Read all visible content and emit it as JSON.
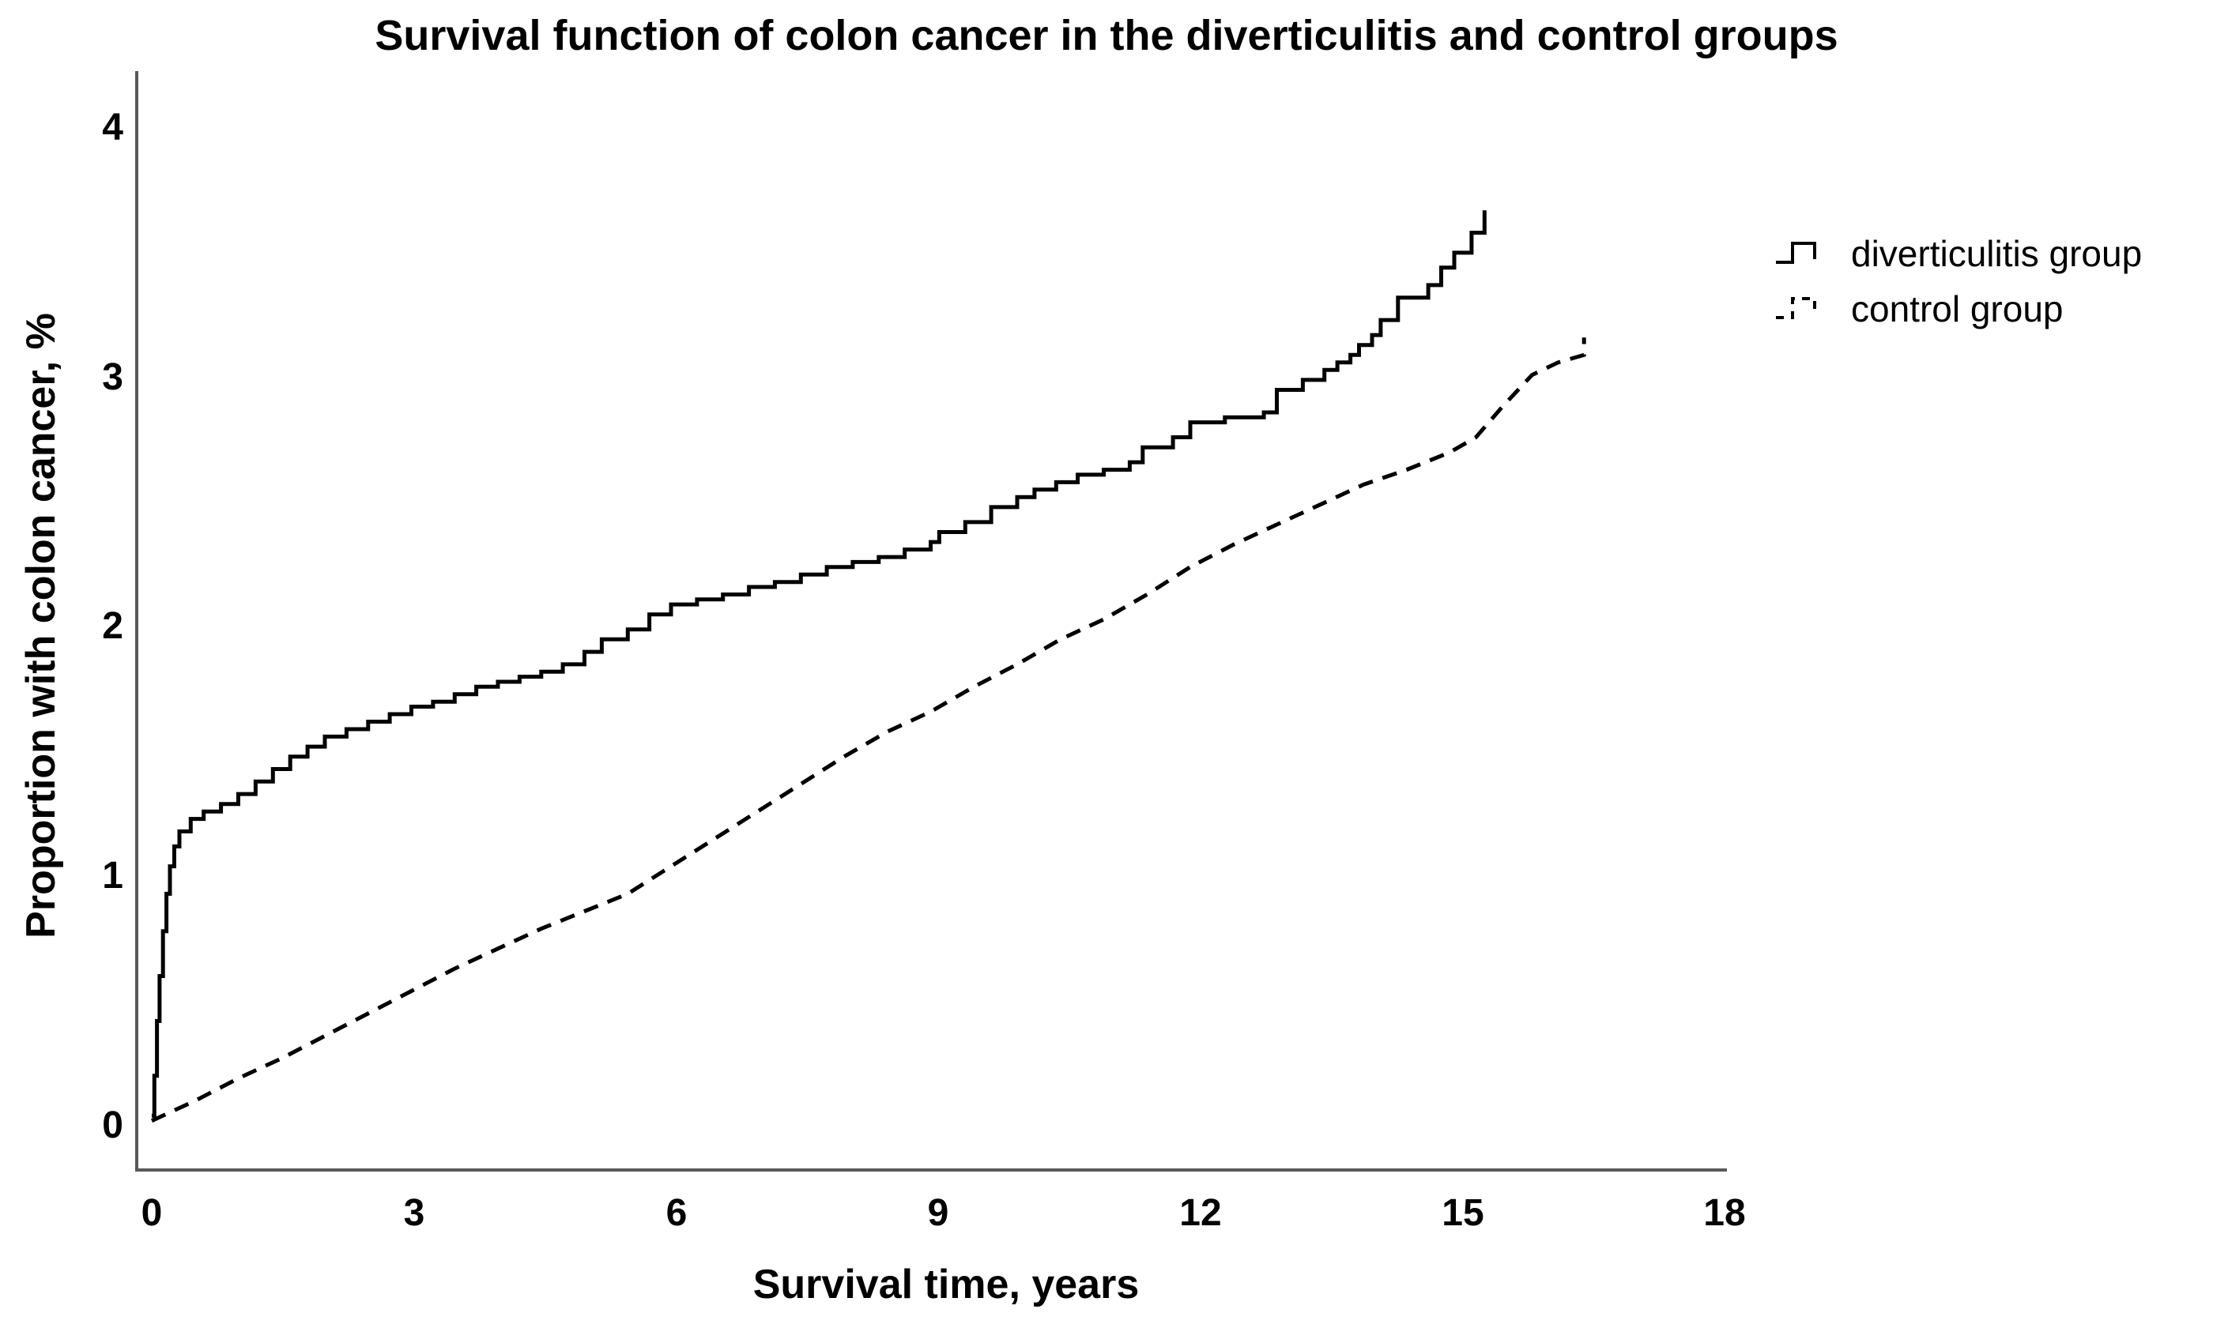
{
  "title": "Survival function of colon cancer in the diverticulitis and control groups",
  "axes": {
    "x_label": "Survival time, years",
    "y_label": "Proportion with colon cancer, %",
    "x_ticks": [
      "0",
      "3",
      "6",
      "9",
      "12",
      "15",
      "18"
    ],
    "y_ticks": [
      "4",
      "3",
      "2",
      "1",
      "0"
    ]
  },
  "legend": {
    "items": [
      {
        "label": "diverticulitis group",
        "style": "solid"
      },
      {
        "label": "control group",
        "style": "dashed"
      }
    ]
  },
  "colors": {
    "curve": "#000000",
    "axis_line": "#595959",
    "background": "#ffffff"
  },
  "chart_data": {
    "type": "line",
    "title": "Survival function of colon cancer in the diverticulitis and control groups",
    "xlabel": "Survival time, years",
    "ylabel": "Proportion with colon cancer, %",
    "x_range": [
      0,
      18
    ],
    "y_range": [
      0,
      4
    ],
    "x_tick_values": [
      0,
      3,
      6,
      9,
      12,
      15,
      18
    ],
    "y_tick_values": [
      0,
      1,
      2,
      3,
      4
    ],
    "grid": false,
    "legend_position": "right",
    "units": {
      "x": "years",
      "y": "percent"
    },
    "series": [
      {
        "name": "diverticulitis group",
        "id": "diverticulitis",
        "line_style": "solid",
        "interpolation": "step-after",
        "color": "#000000",
        "points": [
          [
            0,
            0.04
          ],
          [
            0.03,
            0.2
          ],
          [
            0.06,
            0.42
          ],
          [
            0.09,
            0.6
          ],
          [
            0.13,
            0.78
          ],
          [
            0.17,
            0.93
          ],
          [
            0.21,
            1.04
          ],
          [
            0.26,
            1.12
          ],
          [
            0.32,
            1.18
          ],
          [
            0.45,
            1.23
          ],
          [
            0.6,
            1.26
          ],
          [
            0.8,
            1.29
          ],
          [
            1.0,
            1.33
          ],
          [
            1.2,
            1.38
          ],
          [
            1.4,
            1.43
          ],
          [
            1.6,
            1.48
          ],
          [
            1.8,
            1.52
          ],
          [
            2.0,
            1.56
          ],
          [
            2.25,
            1.59
          ],
          [
            2.5,
            1.62
          ],
          [
            2.75,
            1.65
          ],
          [
            3.0,
            1.68
          ],
          [
            3.25,
            1.7
          ],
          [
            3.5,
            1.73
          ],
          [
            3.75,
            1.76
          ],
          [
            4.0,
            1.78
          ],
          [
            4.25,
            1.8
          ],
          [
            4.5,
            1.82
          ],
          [
            4.75,
            1.85
          ],
          [
            5.0,
            1.9
          ],
          [
            5.2,
            1.95
          ],
          [
            5.5,
            1.99
          ],
          [
            5.75,
            2.05
          ],
          [
            6.0,
            2.09
          ],
          [
            6.3,
            2.11
          ],
          [
            6.6,
            2.13
          ],
          [
            6.9,
            2.16
          ],
          [
            7.2,
            2.18
          ],
          [
            7.5,
            2.21
          ],
          [
            7.8,
            2.24
          ],
          [
            8.1,
            2.26
          ],
          [
            8.4,
            2.28
          ],
          [
            8.7,
            2.31
          ],
          [
            9.0,
            2.34
          ],
          [
            9.1,
            2.38
          ],
          [
            9.4,
            2.42
          ],
          [
            9.7,
            2.48
          ],
          [
            10.0,
            2.52
          ],
          [
            10.2,
            2.55
          ],
          [
            10.45,
            2.58
          ],
          [
            10.7,
            2.61
          ],
          [
            11.0,
            2.63
          ],
          [
            11.3,
            2.66
          ],
          [
            11.45,
            2.72
          ],
          [
            11.8,
            2.76
          ],
          [
            12.0,
            2.82
          ],
          [
            12.4,
            2.84
          ],
          [
            12.85,
            2.86
          ],
          [
            13.0,
            2.95
          ],
          [
            13.3,
            2.99
          ],
          [
            13.55,
            3.03
          ],
          [
            13.7,
            3.06
          ],
          [
            13.85,
            3.09
          ],
          [
            13.95,
            3.13
          ],
          [
            14.1,
            3.17
          ],
          [
            14.2,
            3.23
          ],
          [
            14.4,
            3.32
          ],
          [
            14.75,
            3.37
          ],
          [
            14.9,
            3.44
          ],
          [
            15.05,
            3.5
          ],
          [
            15.25,
            3.58
          ],
          [
            15.4,
            3.67
          ]
        ]
      },
      {
        "name": "control group",
        "id": "control",
        "line_style": "dashed",
        "interpolation": "linear",
        "color": "#000000",
        "points": [
          [
            0,
            0.02
          ],
          [
            0.5,
            0.1
          ],
          [
            1.0,
            0.19
          ],
          [
            1.5,
            0.27
          ],
          [
            2.0,
            0.36
          ],
          [
            2.5,
            0.45
          ],
          [
            3.0,
            0.54
          ],
          [
            3.5,
            0.63
          ],
          [
            4.0,
            0.71
          ],
          [
            4.5,
            0.79
          ],
          [
            5.0,
            0.86
          ],
          [
            5.5,
            0.93
          ],
          [
            6.0,
            1.04
          ],
          [
            6.5,
            1.15
          ],
          [
            7.0,
            1.26
          ],
          [
            7.5,
            1.37
          ],
          [
            8.0,
            1.48
          ],
          [
            8.5,
            1.58
          ],
          [
            9.0,
            1.66
          ],
          [
            9.5,
            1.76
          ],
          [
            10.0,
            1.85
          ],
          [
            10.5,
            1.95
          ],
          [
            11.0,
            2.03
          ],
          [
            11.5,
            2.13
          ],
          [
            12.0,
            2.24
          ],
          [
            12.5,
            2.33
          ],
          [
            13.0,
            2.41
          ],
          [
            13.5,
            2.49
          ],
          [
            14.0,
            2.57
          ],
          [
            14.5,
            2.63
          ],
          [
            15.0,
            2.7
          ],
          [
            15.3,
            2.76
          ],
          [
            15.6,
            2.88
          ],
          [
            15.95,
            3.01
          ],
          [
            16.25,
            3.06
          ],
          [
            16.55,
            3.09
          ],
          [
            16.55,
            3.16
          ]
        ]
      }
    ]
  }
}
